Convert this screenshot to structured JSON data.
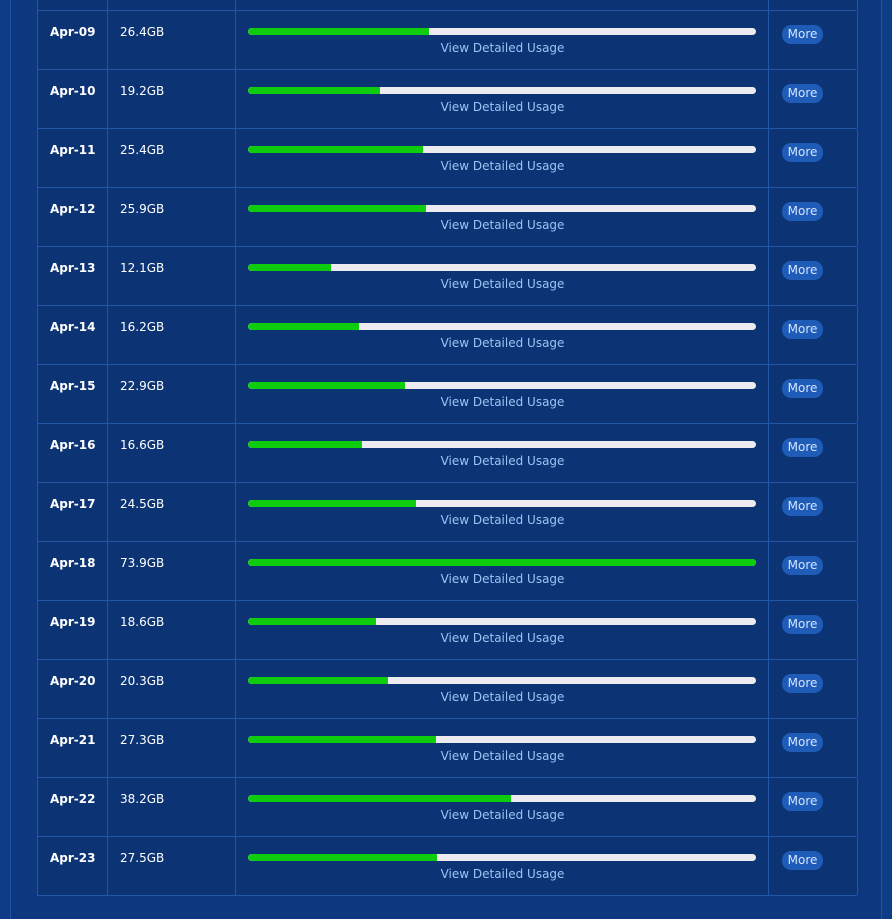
{
  "table": {
    "link_label": "View Detailed Usage",
    "button_label": "More",
    "rows": [
      {
        "date": "Apr-09",
        "usage": "26.4GB"
      },
      {
        "date": "Apr-10",
        "usage": "19.2GB"
      },
      {
        "date": "Apr-11",
        "usage": "25.4GB"
      },
      {
        "date": "Apr-12",
        "usage": "25.9GB"
      },
      {
        "date": "Apr-13",
        "usage": "12.1GB"
      },
      {
        "date": "Apr-14",
        "usage": "16.2GB"
      },
      {
        "date": "Apr-15",
        "usage": "22.9GB"
      },
      {
        "date": "Apr-16",
        "usage": "16.6GB"
      },
      {
        "date": "Apr-17",
        "usage": "24.5GB"
      },
      {
        "date": "Apr-18",
        "usage": "73.9GB"
      },
      {
        "date": "Apr-19",
        "usage": "18.6GB"
      },
      {
        "date": "Apr-20",
        "usage": "20.3GB"
      },
      {
        "date": "Apr-21",
        "usage": "27.3GB"
      },
      {
        "date": "Apr-22",
        "usage": "38.2GB"
      },
      {
        "date": "Apr-23",
        "usage": "27.5GB"
      }
    ]
  }
}
